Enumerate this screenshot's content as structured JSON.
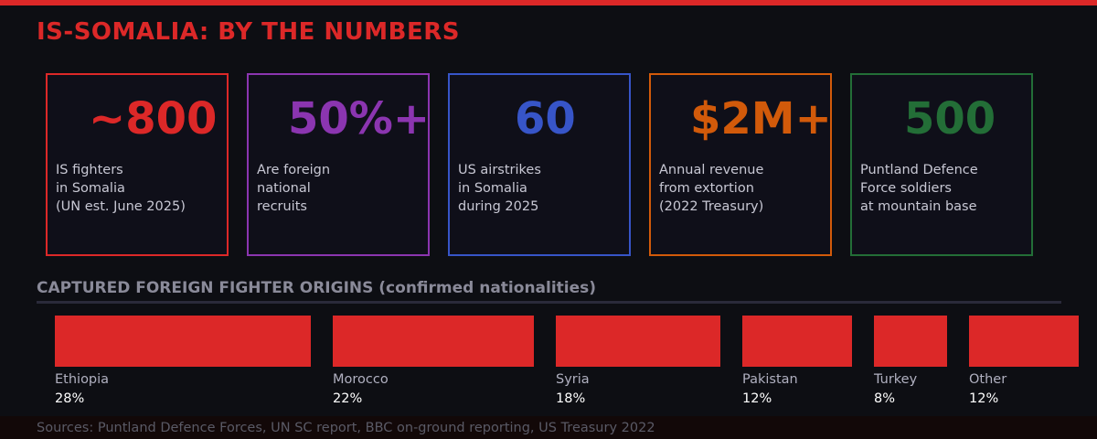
{
  "title": "IS-SOMALIA: BY THE NUMBERS",
  "stats": [
    {
      "value": "~800",
      "desc": "IS fighters\nin Somalia\n(UN est. June 2025)",
      "color": "#dc2828"
    },
    {
      "value": "50%+",
      "desc": "Are foreign\nnational\nrecruits",
      "color": "#8b35b0"
    },
    {
      "value": "60",
      "desc": "US airstrikes\nin Somalia\nduring 2025",
      "color": "#3755c8"
    },
    {
      "value": "$2M+",
      "desc": "Annual revenue\nfrom extortion\n(2022 Treasury)",
      "color": "#d25a0a"
    },
    {
      "value": "500",
      "desc": "Puntland Defence\nForce soldiers\nat mountain base",
      "color": "#236e37"
    }
  ],
  "section_title": "CAPTURED FOREIGN FIGHTER ORIGINS (confirmed nationalities)",
  "chart_data": {
    "type": "bar",
    "orientation": "proportional horizontal blocks",
    "categories": [
      "Ethiopia",
      "Morocco",
      "Syria",
      "Pakistan",
      "Turkey",
      "Other"
    ],
    "values": [
      28,
      22,
      18,
      12,
      8,
      12
    ],
    "value_labels": [
      "28%",
      "22%",
      "18%",
      "12%",
      "8%",
      "12%"
    ],
    "unit": "%",
    "color": "#dc2828"
  },
  "sources": "Sources: Puntland Defence Forces, UN SC report, BBC on-ground reporting, US Treasury 2022"
}
